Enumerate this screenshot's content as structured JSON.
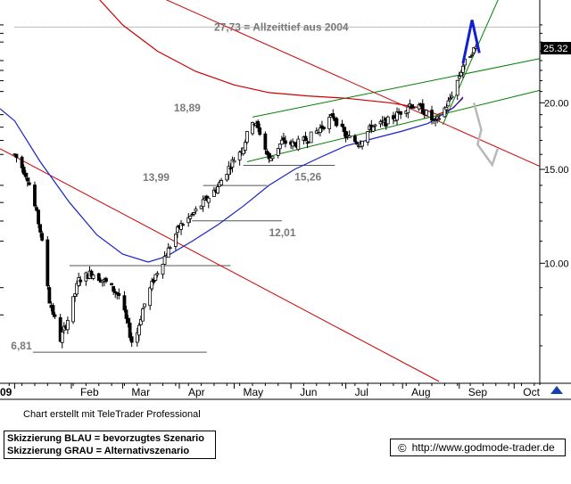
{
  "chart_data": {
    "type": "candlestick",
    "y_scale": "log",
    "y_ticks": [
      "10.00",
      "15.00",
      "20.00"
    ],
    "last_price": "25.32",
    "x_ticks": [
      "09",
      "Feb",
      "Mar",
      "Apr",
      "May",
      "Jun",
      "Jul",
      "Aug",
      "Sep",
      "Oct"
    ],
    "ylim": [
      6.0,
      30.0
    ],
    "price_path": [
      [
        "2009-01-01",
        16.0
      ],
      [
        "2009-01-08",
        14.5
      ],
      [
        "2009-01-15",
        11.5
      ],
      [
        "2009-01-20",
        8.5
      ],
      [
        "2009-01-26",
        7.2
      ],
      [
        "2009-01-31",
        8.0
      ],
      [
        "2009-02-05",
        9.3
      ],
      [
        "2009-02-12",
        9.6
      ],
      [
        "2009-02-20",
        9.2
      ],
      [
        "2009-02-27",
        8.7
      ],
      [
        "2009-03-04",
        7.6
      ],
      [
        "2009-03-07",
        6.9
      ],
      [
        "2009-03-12",
        8.2
      ],
      [
        "2009-03-19",
        9.5
      ],
      [
        "2009-03-26",
        10.6
      ],
      [
        "2009-04-01",
        11.7
      ],
      [
        "2009-04-08",
        12.3
      ],
      [
        "2009-04-16",
        13.2
      ],
      [
        "2009-04-22",
        13.9
      ],
      [
        "2009-04-30",
        15.5
      ],
      [
        "2009-05-06",
        16.6
      ],
      [
        "2009-05-11",
        18.6
      ],
      [
        "2009-05-15",
        17.6
      ],
      [
        "2009-05-20",
        15.6
      ],
      [
        "2009-05-27",
        16.9
      ],
      [
        "2009-06-03",
        16.7
      ],
      [
        "2009-06-10",
        17.1
      ],
      [
        "2009-06-17",
        17.9
      ],
      [
        "2009-06-24",
        18.9
      ],
      [
        "2009-07-01",
        17.3
      ],
      [
        "2009-07-08",
        16.8
      ],
      [
        "2009-07-15",
        18.0
      ],
      [
        "2009-07-22",
        18.3
      ],
      [
        "2009-07-29",
        19.0
      ],
      [
        "2009-08-05",
        19.9
      ],
      [
        "2009-08-12",
        19.4
      ],
      [
        "2009-08-19",
        18.3
      ],
      [
        "2009-08-26",
        20.0
      ],
      [
        "2009-08-31",
        22.0
      ],
      [
        "2009-09-03",
        23.5
      ],
      [
        "2009-09-08",
        25.0
      ],
      [
        "2009-09-10",
        25.32
      ]
    ],
    "ma_blue": [
      [
        "2008-12-24",
        19.5
      ],
      [
        "2009-01-01",
        18.5
      ],
      [
        "2009-01-15",
        15.5
      ],
      [
        "2009-01-31",
        13.0
      ],
      [
        "2009-02-15",
        11.3
      ],
      [
        "2009-03-01",
        10.4
      ],
      [
        "2009-03-15",
        10.05
      ],
      [
        "2009-03-25",
        10.3
      ],
      [
        "2009-04-08",
        11.0
      ],
      [
        "2009-04-22",
        11.8
      ],
      [
        "2009-05-06",
        12.8
      ],
      [
        "2009-05-20",
        14.0
      ],
      [
        "2009-06-03",
        15.0
      ],
      [
        "2009-06-17",
        15.8
      ],
      [
        "2009-07-01",
        16.6
      ],
      [
        "2009-07-15",
        17.1
      ],
      [
        "2009-08-01",
        17.7
      ],
      [
        "2009-08-15",
        18.3
      ],
      [
        "2009-08-29",
        19.6
      ],
      [
        "2009-09-03",
        20.5
      ]
    ],
    "ma_red": [
      [
        "2009-02-10",
        33.0
      ],
      [
        "2009-03-01",
        28.0
      ],
      [
        "2009-03-20",
        25.0
      ],
      [
        "2009-04-10",
        22.9
      ],
      [
        "2009-05-01",
        21.6
      ],
      [
        "2009-05-20",
        20.9
      ],
      [
        "2009-06-10",
        20.6
      ],
      [
        "2009-07-01",
        20.4
      ],
      [
        "2009-07-25",
        20.0
      ],
      [
        "2009-08-10",
        19.6
      ],
      [
        "2009-08-20",
        19.0
      ],
      [
        "2009-08-28",
        19.5
      ],
      [
        "2009-09-03",
        20.4
      ]
    ],
    "trendlines": [
      {
        "color": "#cc0000",
        "from": [
          "2008-12-24",
          16.4
        ],
        "to": [
          "2009-08-21",
          6.0
        ]
      },
      {
        "color": "#cc0000",
        "from": [
          "2009-01-28",
          38.0
        ],
        "to": [
          "2009-10-15",
          15.2
        ]
      },
      {
        "color": "#008000",
        "from": [
          "2009-05-11",
          18.8
        ],
        "to": [
          "2009-10-15",
          24.2
        ]
      },
      {
        "color": "#008000",
        "from": [
          "2009-05-08",
          15.5
        ],
        "to": [
          "2009-10-15",
          21.1
        ]
      },
      {
        "color": "#008000",
        "from": [
          "2009-08-23",
          18.2
        ],
        "to": [
          "2009-09-27",
          34.0
        ]
      }
    ],
    "levels": [
      {
        "y": 27.73,
        "from": "2009-01-01",
        "to": "2009-10-15",
        "label": "27,73 = Allzeittief aus 2004",
        "label_x": "2009-04-20"
      },
      {
        "y": 18.89,
        "from": null,
        "to": null,
        "label": "18,89",
        "label_x": "2009-03-29"
      },
      {
        "y": 15.26,
        "from": "2009-05-06",
        "to": "2009-06-25",
        "label": "15,26",
        "label_x": "2009-06-03"
      },
      {
        "y": 13.99,
        "from": "2009-04-14",
        "to": "2009-05-19",
        "label": "13,99",
        "label_x": "2009-03-12"
      },
      {
        "y": 12.01,
        "from": "2009-04-08",
        "to": "2009-05-27",
        "label": "12,01",
        "label_x": "2009-05-20"
      },
      {
        "y": 9.9,
        "from": "2009-01-31",
        "to": "2009-04-29",
        "label": "",
        "label_x": null
      },
      {
        "y": 6.81,
        "from": "2009-01-11",
        "to": "2009-04-16",
        "label": "6,81",
        "label_x": "2008-12-30"
      }
    ],
    "scenarios": [
      {
        "name": "BLAU",
        "color": "#1020d0",
        "points": [
          [
            "2009-09-03",
            23.7
          ],
          [
            "2009-09-08",
            28.6
          ],
          [
            "2009-09-12",
            24.8
          ]
        ]
      },
      {
        "name": "GRAU",
        "color": "#b8b8b8",
        "points": [
          [
            "2009-09-09",
            20.0
          ],
          [
            "2009-09-13",
            17.8
          ],
          [
            "2009-09-11",
            16.7
          ],
          [
            "2009-09-19",
            15.3
          ],
          [
            "2009-09-22",
            16.4
          ]
        ]
      }
    ]
  },
  "footer": {
    "credit": "Chart erstellt mit TeleTrader Professional",
    "legend_blue": "Skizzierung BLAU = bevorzugtes Szenario",
    "legend_grey": "Skizzierung GRAU = Alternativszenario",
    "copyright_symbol": "©",
    "url": "http://www.godmode-trader.de"
  }
}
